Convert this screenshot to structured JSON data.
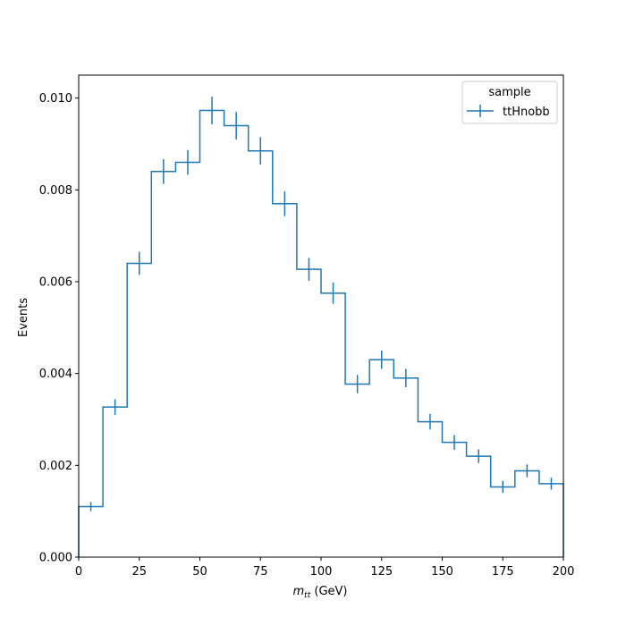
{
  "chart_data": {
    "type": "histogram",
    "x_label_prefix": "m",
    "x_label_subscript": "tt",
    "x_label_suffix": " (GeV)",
    "ylabel": "Events",
    "xlim": [
      0,
      200
    ],
    "ylim": [
      0,
      0.0105
    ],
    "grid": false,
    "x_ticks": [
      0,
      25,
      50,
      75,
      100,
      125,
      150,
      175,
      200
    ],
    "x_tick_labels": [
      "0",
      "25",
      "50",
      "75",
      "100",
      "125",
      "150",
      "175",
      "200"
    ],
    "y_ticks": [
      0,
      0.002,
      0.004,
      0.006,
      0.008,
      0.01
    ],
    "y_tick_labels": [
      "0.000",
      "0.002",
      "0.004",
      "0.006",
      "0.008",
      "0.010"
    ],
    "bin_edges": [
      0,
      10,
      20,
      30,
      40,
      50,
      60,
      70,
      80,
      90,
      100,
      110,
      120,
      130,
      140,
      150,
      160,
      170,
      180,
      190,
      200
    ],
    "legend": {
      "title": "sample",
      "placement": "top-right"
    },
    "series": [
      {
        "name": "ttHnobb",
        "color": "#1f77b4",
        "values": [
          0.0011,
          0.00327,
          0.0064,
          0.0084,
          0.0086,
          0.00973,
          0.0094,
          0.00885,
          0.0077,
          0.00627,
          0.00575,
          0.00377,
          0.0043,
          0.0039,
          0.00295,
          0.0025,
          0.0022,
          0.00153,
          0.00188,
          0.0016
        ],
        "errors": [
          0.0001,
          0.00017,
          0.00025,
          0.00027,
          0.00027,
          0.0003,
          0.0003,
          0.0003,
          0.00027,
          0.00025,
          0.00023,
          0.0002,
          0.0002,
          0.0002,
          0.00017,
          0.00016,
          0.00015,
          0.00013,
          0.00014,
          0.00013
        ]
      }
    ]
  }
}
